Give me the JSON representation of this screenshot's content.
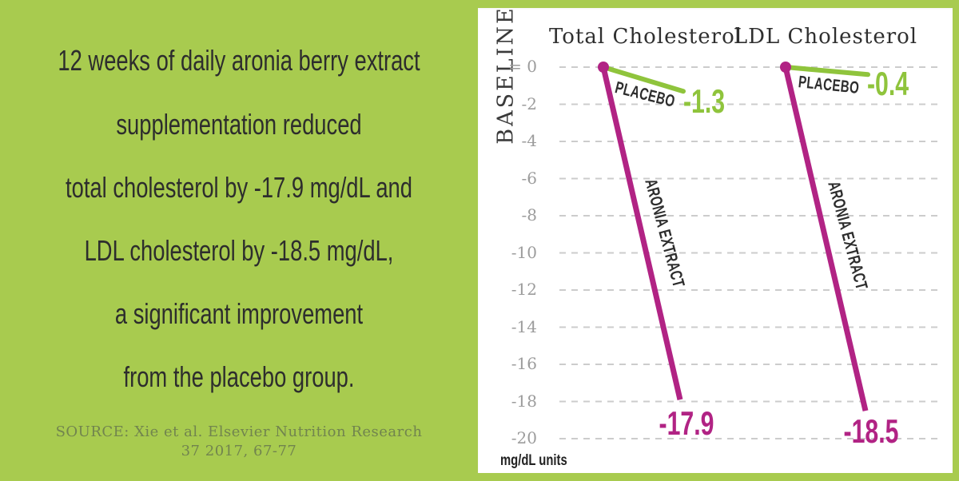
{
  "left_panel": {
    "lines": [
      "12 weeks of daily aronia berry extract",
      "supplementation reduced",
      "total cholesterol by -17.9 mg/dL and",
      "LDL cholesterol by -18.5 mg/dL,",
      "a significant improvement",
      "from the placebo group."
    ],
    "source": [
      "SOURCE: Xie et al. Elsevier Nutrition Research",
      "37 2017, 67-77"
    ]
  },
  "chart_data": {
    "type": "line",
    "subtype": "slopegraph",
    "title": "",
    "baseline_label": "BASELINE",
    "y_axis": {
      "zero_label": "= 0",
      "ticks": [
        0,
        -2,
        -4,
        -6,
        -8,
        -10,
        -12,
        -14,
        -16,
        -18,
        -20
      ],
      "ylim": [
        -20,
        0
      ],
      "unit_label": "mg/dL units",
      "grid": "dashed"
    },
    "groups": [
      {
        "name": "Total Cholesterol",
        "series": [
          {
            "name": "PLACEBO",
            "value": -1.3
          },
          {
            "name": "ARONIA EXTRACT",
            "value": -17.9
          }
        ]
      },
      {
        "name": "LDL Cholesterol",
        "series": [
          {
            "name": "PLACEBO",
            "value": -0.4
          },
          {
            "name": "ARONIA EXTRACT",
            "value": -18.5
          }
        ]
      }
    ],
    "legend_position": "inline-labels",
    "colors": {
      "background_green": "#a8cb4f",
      "placebo_green": "#8fc43c",
      "aronia_magenta": "#b12384",
      "grid": "#cccccc",
      "tick_text": "#9c9c9c",
      "dark_text": "#2d2d2d",
      "source_text": "#71844e"
    }
  }
}
